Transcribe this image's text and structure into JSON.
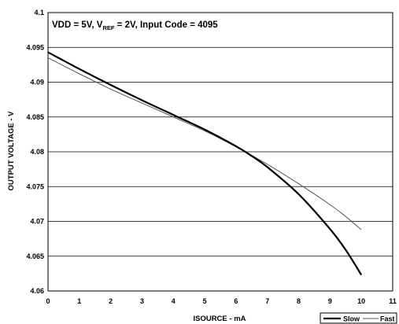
{
  "chart_data": {
    "type": "line",
    "xlabel": "ISOURCE - mA",
    "ylabel": "OUTPUT VOLTAGE - V",
    "annotation": {
      "prefix": "VDD = 5V, V",
      "subscript": "REF",
      "suffix": " = 2V, Input Code = 4095"
    },
    "xlim": [
      0,
      11
    ],
    "ylim": [
      4.06,
      4.1
    ],
    "x_ticks": [
      "0",
      "1",
      "2",
      "3",
      "4",
      "5",
      "6",
      "7",
      "8",
      "9",
      "10",
      "11"
    ],
    "y_ticks": [
      "4.06",
      "4.065",
      "4.07",
      "4.075",
      "4.08",
      "4.085",
      "4.09",
      "4.095",
      "4.1"
    ],
    "grid": "horizontal",
    "legend_position": "bottom-right",
    "series": [
      {
        "name": "Slow",
        "style": "thick",
        "color": "#000000",
        "x": [
          0,
          1,
          2,
          3,
          4,
          5,
          6,
          6.5,
          7,
          8,
          9,
          9.5,
          10
        ],
        "y": [
          4.0943,
          4.0919,
          4.0896,
          4.0874,
          4.0853,
          4.0832,
          4.0808,
          4.0794,
          4.0778,
          4.0739,
          4.0689,
          4.0659,
          4.0623
        ]
      },
      {
        "name": "Fast",
        "style": "thin",
        "color": "#555555",
        "x": [
          0,
          1,
          2,
          3,
          4,
          5,
          6,
          7,
          8,
          9,
          9.5,
          10
        ],
        "y": [
          4.0935,
          4.0912,
          4.089,
          4.087,
          4.085,
          4.083,
          4.0807,
          4.0782,
          4.0754,
          4.0724,
          4.0707,
          4.0688
        ]
      }
    ]
  }
}
